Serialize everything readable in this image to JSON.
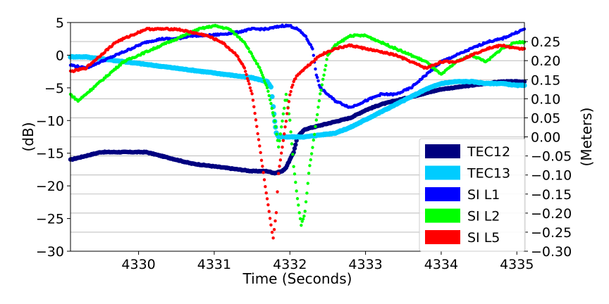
{
  "chart_data": {
    "type": "scatter",
    "xlabel": "Time (Seconds)",
    "ylabel_left": "(dB)",
    "ylabel_right": "(Meters)",
    "xlim": [
      4329.1,
      4335.1
    ],
    "ylim_left": [
      -30,
      5
    ],
    "ylim_right": [
      -0.3,
      0.3
    ],
    "x_ticks": [
      4330,
      4331,
      4332,
      4333,
      4334,
      4335
    ],
    "y_ticks_left": [
      5,
      0,
      -5,
      -10,
      -15,
      -20,
      -25,
      -30
    ],
    "y_ticks_right": [
      "0.25",
      "0.20",
      "0.15",
      "0.10",
      "0.05",
      "0.00",
      "-0.05",
      "-0.10",
      "-0.15",
      "-0.20",
      "-0.25",
      "-0.30"
    ],
    "y_ticks_right_values": [
      0.25,
      0.2,
      0.15,
      0.1,
      0.05,
      0.0,
      -0.05,
      -0.1,
      -0.15,
      -0.2,
      -0.25,
      -0.3
    ],
    "grid": "horizontal (right axis)",
    "legend_placement": "lower-right",
    "series": [
      {
        "name": "TEC12",
        "axis": "right",
        "color": "#00007f",
        "marker_size": 3.2,
        "points": [
          [
            4329.1,
            -0.06
          ],
          [
            4329.3,
            -0.05
          ],
          [
            4329.5,
            -0.04
          ],
          [
            4329.7,
            -0.04
          ],
          [
            4329.9,
            -0.04
          ],
          [
            4330.1,
            -0.04
          ],
          [
            4330.3,
            -0.05
          ],
          [
            4330.5,
            -0.06
          ],
          [
            4330.7,
            -0.07
          ],
          [
            4330.9,
            -0.075
          ],
          [
            4331.1,
            -0.08
          ],
          [
            4331.3,
            -0.085
          ],
          [
            4331.5,
            -0.09
          ],
          [
            4331.7,
            -0.09
          ],
          [
            4331.8,
            -0.095
          ],
          [
            4331.9,
            -0.09
          ],
          [
            4331.95,
            -0.08
          ],
          [
            4332.0,
            -0.06
          ],
          [
            4332.05,
            -0.04
          ],
          [
            4332.1,
            0.0
          ],
          [
            4332.2,
            0.02
          ],
          [
            4332.4,
            0.03
          ],
          [
            4332.6,
            0.04
          ],
          [
            4332.8,
            0.05
          ],
          [
            4333.0,
            0.07
          ],
          [
            4333.2,
            0.085
          ],
          [
            4333.4,
            0.095
          ],
          [
            4333.6,
            0.105
          ],
          [
            4333.8,
            0.115
          ],
          [
            4334.0,
            0.125
          ],
          [
            4334.2,
            0.13
          ],
          [
            4334.4,
            0.135
          ],
          [
            4334.6,
            0.14
          ],
          [
            4334.8,
            0.145
          ],
          [
            4335.0,
            0.145
          ],
          [
            4335.1,
            0.145
          ]
        ]
      },
      {
        "name": "TEC13",
        "axis": "right",
        "color": "#00ccff",
        "marker_size": 3.6,
        "points": [
          [
            4329.1,
            0.21
          ],
          [
            4329.3,
            0.21
          ],
          [
            4329.5,
            0.205
          ],
          [
            4329.7,
            0.2
          ],
          [
            4329.9,
            0.195
          ],
          [
            4330.1,
            0.19
          ],
          [
            4330.3,
            0.185
          ],
          [
            4330.5,
            0.18
          ],
          [
            4330.7,
            0.175
          ],
          [
            4330.9,
            0.17
          ],
          [
            4331.1,
            0.165
          ],
          [
            4331.3,
            0.16
          ],
          [
            4331.5,
            0.155
          ],
          [
            4331.6,
            0.15
          ],
          [
            4331.7,
            0.145
          ],
          [
            4331.75,
            0.13
          ],
          [
            4331.78,
            0.08
          ],
          [
            4331.8,
            0.04
          ],
          [
            4331.82,
            0.01
          ],
          [
            4331.85,
            0.0
          ],
          [
            4331.9,
            0.0
          ],
          [
            4332.0,
            0.0
          ],
          [
            4332.2,
            0.0
          ],
          [
            4332.4,
            0.005
          ],
          [
            4332.6,
            0.01
          ],
          [
            4332.8,
            0.025
          ],
          [
            4333.0,
            0.045
          ],
          [
            4333.2,
            0.065
          ],
          [
            4333.4,
            0.085
          ],
          [
            4333.6,
            0.105
          ],
          [
            4333.8,
            0.125
          ],
          [
            4334.0,
            0.14
          ],
          [
            4334.2,
            0.145
          ],
          [
            4334.4,
            0.145
          ],
          [
            4334.6,
            0.14
          ],
          [
            4334.8,
            0.14
          ],
          [
            4335.0,
            0.135
          ],
          [
            4335.1,
            0.135
          ]
        ]
      },
      {
        "name": "SI L1",
        "axis": "left",
        "color": "#0000ff",
        "marker_size": 2.2,
        "points": [
          [
            4329.1,
            -1.5
          ],
          [
            4329.3,
            -2
          ],
          [
            4329.5,
            -1
          ],
          [
            4329.7,
            0
          ],
          [
            4329.9,
            1
          ],
          [
            4330.1,
            2
          ],
          [
            4330.3,
            2.5
          ],
          [
            4330.5,
            2.5
          ],
          [
            4330.7,
            3
          ],
          [
            4330.9,
            3
          ],
          [
            4331.1,
            3.2
          ],
          [
            4331.3,
            3.5
          ],
          [
            4331.5,
            4
          ],
          [
            4331.7,
            4
          ],
          [
            4331.9,
            4.5
          ],
          [
            4332.0,
            4.5
          ],
          [
            4332.1,
            4
          ],
          [
            4332.2,
            3
          ],
          [
            4332.3,
            1
          ],
          [
            4332.35,
            -3
          ],
          [
            4332.4,
            -5
          ],
          [
            4332.5,
            -6
          ],
          [
            4332.6,
            -7
          ],
          [
            4332.8,
            -8
          ],
          [
            4333.0,
            -7
          ],
          [
            4333.2,
            -6
          ],
          [
            4333.4,
            -6
          ],
          [
            4333.6,
            -5
          ],
          [
            4333.8,
            -3
          ],
          [
            4334.0,
            -1
          ],
          [
            4334.2,
            0
          ],
          [
            4334.4,
            1
          ],
          [
            4334.6,
            2
          ],
          [
            4334.8,
            2.5
          ],
          [
            4335.0,
            3.5
          ],
          [
            4335.1,
            4
          ]
        ]
      },
      {
        "name": "SI L2",
        "axis": "left",
        "color": "#00ff00",
        "marker_size": 2.2,
        "points": [
          [
            4329.1,
            -6
          ],
          [
            4329.2,
            -7
          ],
          [
            4329.3,
            -6
          ],
          [
            4329.4,
            -5
          ],
          [
            4329.6,
            -3
          ],
          [
            4329.8,
            -1
          ],
          [
            4330.0,
            0
          ],
          [
            4330.2,
            1
          ],
          [
            4330.4,
            2
          ],
          [
            4330.6,
            3
          ],
          [
            4330.8,
            4
          ],
          [
            4331.0,
            4.5
          ],
          [
            4331.2,
            4
          ],
          [
            4331.4,
            2
          ],
          [
            4331.6,
            -2
          ],
          [
            4331.7,
            -5
          ],
          [
            4331.8,
            -10
          ],
          [
            4331.85,
            -14
          ],
          [
            4331.9,
            -10
          ],
          [
            4331.95,
            -6
          ],
          [
            4332.0,
            -10
          ],
          [
            4332.05,
            -17
          ],
          [
            4332.1,
            -22
          ],
          [
            4332.15,
            -26
          ],
          [
            4332.2,
            -24
          ],
          [
            4332.25,
            -18
          ],
          [
            4332.3,
            -14
          ],
          [
            4332.35,
            -10
          ],
          [
            4332.4,
            -6
          ],
          [
            4332.45,
            -3
          ],
          [
            4332.5,
            0
          ],
          [
            4332.6,
            1.5
          ],
          [
            4332.8,
            3
          ],
          [
            4333.0,
            3
          ],
          [
            4333.2,
            2
          ],
          [
            4333.4,
            1
          ],
          [
            4333.6,
            0
          ],
          [
            4333.8,
            -1
          ],
          [
            4334.0,
            -3
          ],
          [
            4334.2,
            -1
          ],
          [
            4334.4,
            0
          ],
          [
            4334.6,
            -1
          ],
          [
            4334.8,
            1
          ],
          [
            4335.0,
            2
          ],
          [
            4335.1,
            2
          ]
        ]
      },
      {
        "name": "SI L5",
        "axis": "left",
        "color": "#ff0000",
        "marker_size": 2.2,
        "points": [
          [
            4329.1,
            -2.5
          ],
          [
            4329.3,
            -2
          ],
          [
            4329.5,
            0
          ],
          [
            4329.7,
            2
          ],
          [
            4329.9,
            3
          ],
          [
            4330.1,
            4
          ],
          [
            4330.3,
            4
          ],
          [
            4330.5,
            4
          ],
          [
            4330.7,
            3.5
          ],
          [
            4330.9,
            3
          ],
          [
            4331.1,
            2
          ],
          [
            4331.3,
            0
          ],
          [
            4331.4,
            -2
          ],
          [
            4331.5,
            -6
          ],
          [
            4331.55,
            -10
          ],
          [
            4331.6,
            -14
          ],
          [
            4331.65,
            -18
          ],
          [
            4331.7,
            -22
          ],
          [
            4331.75,
            -26
          ],
          [
            4331.78,
            -28
          ],
          [
            4331.82,
            -24
          ],
          [
            4331.85,
            -18
          ],
          [
            4331.9,
            -14
          ],
          [
            4331.95,
            -10
          ],
          [
            4332.0,
            -6
          ],
          [
            4332.05,
            -4
          ],
          [
            4332.1,
            -3
          ],
          [
            4332.2,
            -2
          ],
          [
            4332.4,
            0
          ],
          [
            4332.6,
            1
          ],
          [
            4332.8,
            1.5
          ],
          [
            4333.0,
            1
          ],
          [
            4333.2,
            0.5
          ],
          [
            4333.4,
            0
          ],
          [
            4333.6,
            -1
          ],
          [
            4333.8,
            -2
          ],
          [
            4334.0,
            -1
          ],
          [
            4334.2,
            -1
          ],
          [
            4334.4,
            0
          ],
          [
            4334.6,
            1
          ],
          [
            4334.8,
            1.5
          ],
          [
            4335.0,
            1
          ],
          [
            4335.1,
            1
          ]
        ]
      }
    ]
  }
}
